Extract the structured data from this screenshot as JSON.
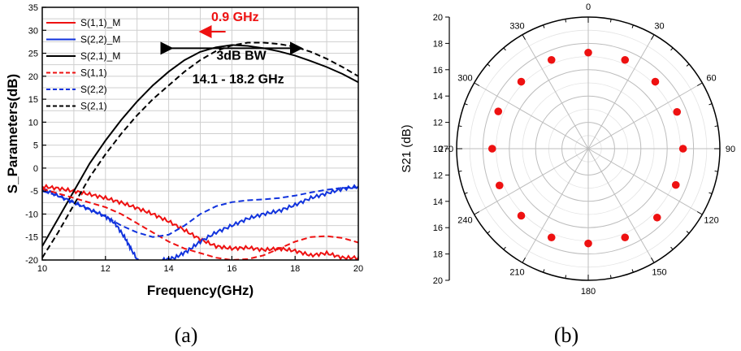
{
  "chart_data": [
    {
      "type": "line",
      "xlabel": "Frequency(GHz)",
      "ylabel": "S_Parameters(dB)",
      "xlim": [
        10,
        20
      ],
      "ylim": [
        -20,
        35
      ],
      "xticks": [
        "10",
        "12",
        "14",
        "16",
        "18",
        "20"
      ],
      "yticks": [
        "-20",
        "-15",
        "-10",
        "-5",
        "0",
        "5",
        "10",
        "15",
        "20",
        "25",
        "30",
        "35"
      ],
      "grid": true,
      "legend_position": "top-left",
      "series": [
        {
          "name": "S(1,1)_M",
          "color": "#ee1111",
          "dash": "solid",
          "measured": true,
          "x": [
            10,
            10.5,
            11,
            11.5,
            12,
            12.5,
            13,
            13.5,
            14,
            14.5,
            15,
            15.5,
            16,
            16.5,
            17,
            17.5,
            18,
            18.5,
            19,
            19.5,
            20
          ],
          "y": [
            -4,
            -4.4,
            -5,
            -5.7,
            -6.5,
            -7.5,
            -8.7,
            -10,
            -11.6,
            -13.5,
            -15.5,
            -17,
            -17.5,
            -17.3,
            -17.8,
            -17.5,
            -18,
            -19,
            -18.5,
            -19.5,
            -19.5
          ]
        },
        {
          "name": "S(2,2)_M",
          "color": "#1133dd",
          "dash": "solid",
          "measured": true,
          "x": [
            10,
            10.5,
            11,
            11.5,
            12,
            12.3,
            12.6,
            12.8,
            13.1,
            13.4,
            13.8,
            14.2,
            14.6,
            15,
            15.5,
            16,
            16.5,
            17,
            17.5,
            18,
            18.5,
            19,
            19.5,
            20
          ],
          "y": [
            -4.5,
            -6,
            -7.5,
            -9,
            -10.5,
            -12,
            -15,
            -17.5,
            -21,
            -24,
            -20,
            -19.5,
            -18,
            -16,
            -14,
            -12.5,
            -11,
            -10,
            -9.3,
            -8,
            -6.5,
            -5.5,
            -4.5,
            -4
          ]
        },
        {
          "name": "S(2,1)_M",
          "color": "#000000",
          "dash": "solid",
          "measured": false,
          "x": [
            10,
            10.5,
            11,
            11.5,
            12,
            12.5,
            13,
            13.5,
            14,
            14.5,
            15,
            15.5,
            16,
            16.5,
            17,
            17.5,
            18,
            18.5,
            19,
            19.5,
            20
          ],
          "y": [
            -17,
            -11,
            -5,
            1,
            6,
            10.5,
            14.5,
            18,
            21,
            23.5,
            25.3,
            26.3,
            26.8,
            26.6,
            26.1,
            25.4,
            24.5,
            23.3,
            22,
            20.5,
            18.7
          ]
        },
        {
          "name": "S(1,1)",
          "color": "#ee1111",
          "dash": "dashed",
          "measured": false,
          "x": [
            10,
            11,
            12,
            12.5,
            13,
            13.5,
            14,
            14.5,
            15,
            15.5,
            16,
            16.5,
            17,
            17.5,
            18,
            18.5,
            19,
            19.5,
            20
          ],
          "y": [
            -4.5,
            -6.5,
            -8.5,
            -10,
            -12,
            -14,
            -16,
            -17.5,
            -18.5,
            -19.5,
            -20,
            -19.8,
            -19,
            -17.5,
            -16,
            -15,
            -14.8,
            -15.2,
            -16.2
          ]
        },
        {
          "name": "S(2,2)",
          "color": "#1133dd",
          "dash": "dashed",
          "measured": false,
          "x": [
            10,
            10.5,
            11,
            11.5,
            12,
            12.5,
            13,
            13.5,
            14,
            14.5,
            15,
            15.5,
            16,
            16.5,
            17,
            17.5,
            18,
            18.5,
            19,
            19.5,
            20
          ],
          "y": [
            -5,
            -6,
            -7.5,
            -9,
            -10.5,
            -12.5,
            -14,
            -15,
            -14.5,
            -12.5,
            -10,
            -8.3,
            -7.4,
            -7,
            -6.8,
            -6.5,
            -6,
            -5.3,
            -4.7,
            -4.3,
            -4.2
          ]
        },
        {
          "name": "S(2,1)",
          "color": "#000000",
          "dash": "dashed",
          "measured": false,
          "x": [
            10,
            10.5,
            11,
            11.5,
            12,
            12.5,
            13,
            13.5,
            14,
            14.5,
            15,
            15.5,
            16,
            16.5,
            17,
            17.5,
            18,
            18.5,
            19,
            19.5,
            20
          ],
          "y": [
            -19.5,
            -14,
            -8,
            -2,
            3,
            7.5,
            11.5,
            15,
            18,
            21,
            23.5,
            25.5,
            26.7,
            27.3,
            27.3,
            27,
            26.4,
            25.3,
            23.8,
            22,
            20
          ]
        }
      ],
      "annotations": [
        {
          "text": "0.9 GHz",
          "color": "#ee1111",
          "x": 16.1,
          "y": 32
        },
        {
          "text": "3dB BW",
          "color": "#000000",
          "x": 16.3,
          "y": 23.6
        },
        {
          "text": "14.1 - 18.2 GHz",
          "color": "#000000",
          "x": 16.2,
          "y": 18.5
        }
      ],
      "arrows": [
        {
          "color": "#ee1111",
          "from": [
            15.8,
            29.7
          ],
          "to": [
            15.0,
            29.7
          ]
        },
        {
          "color": "#000000",
          "from": [
            14.1,
            26.1
          ],
          "to": [
            18.2,
            26.1
          ],
          "double": true
        }
      ],
      "panel_label": "(a)"
    },
    {
      "type": "scatter",
      "subtype": "polar",
      "ylabel": "S21 (dB)",
      "radial_ticks": [
        "20",
        "18",
        "16",
        "14",
        "12",
        "10",
        "12",
        "14",
        "16",
        "18",
        "20"
      ],
      "angle_ticks": [
        "0",
        "30",
        "60",
        "90",
        "120",
        "150",
        "180",
        "210",
        "240",
        "270",
        "300",
        "330"
      ],
      "radial_range": [
        10,
        20
      ],
      "grid": true,
      "marker_color": "#ee1111",
      "points": [
        {
          "angle": 0,
          "value": 17.3
        },
        {
          "angle": 22.5,
          "value": 17.3
        },
        {
          "angle": 45,
          "value": 17.2
        },
        {
          "angle": 67.5,
          "value": 17.3
        },
        {
          "angle": 90,
          "value": 17.2
        },
        {
          "angle": 112.5,
          "value": 17.2
        },
        {
          "angle": 135,
          "value": 17.4
        },
        {
          "angle": 157.5,
          "value": 17.3
        },
        {
          "angle": 180,
          "value": 17.2
        },
        {
          "angle": 202.5,
          "value": 17.3
        },
        {
          "angle": 225,
          "value": 17.2
        },
        {
          "angle": 247.5,
          "value": 17.3
        },
        {
          "angle": 270,
          "value": 17.3
        },
        {
          "angle": 292.5,
          "value": 17.4
        },
        {
          "angle": 315,
          "value": 17.2
        },
        {
          "angle": 337.5,
          "value": 17.3
        }
      ],
      "panel_label": "(b)"
    }
  ]
}
